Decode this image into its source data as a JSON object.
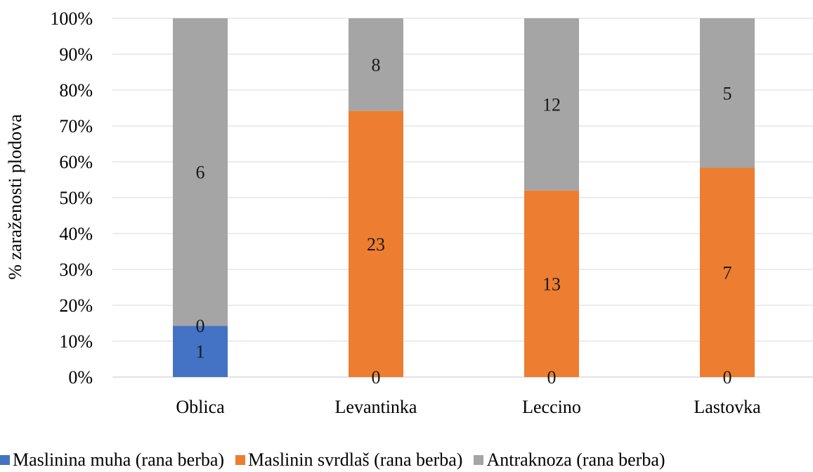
{
  "chart_data": {
    "type": "bar",
    "stacked": "percent",
    "categories": [
      "Oblica",
      "Levantinka",
      "Leccino",
      "Lastovka"
    ],
    "series": [
      {
        "name": "Maslinina muha (rana berba)",
        "color": "#4472C4",
        "values": [
          1,
          0,
          0,
          0
        ]
      },
      {
        "name": "Maslinin svrdlaš (rana berba)",
        "color": "#ED7D31",
        "values": [
          0,
          23,
          13,
          7
        ]
      },
      {
        "name": "Antraknoza (rana berba)",
        "color": "#A5A5A5",
        "values": [
          6,
          8,
          12,
          5
        ]
      }
    ],
    "ylabel": "%  zaraženosti plodova",
    "xlabel": "",
    "ylim": [
      0,
      100
    ],
    "yticks": [
      "0%",
      "10%",
      "20%",
      "30%",
      "40%",
      "50%",
      "60%",
      "70%",
      "80%",
      "90%",
      "100%"
    ],
    "grid": true,
    "legend": "bottom",
    "gridline_color": "#D9D9D9"
  }
}
